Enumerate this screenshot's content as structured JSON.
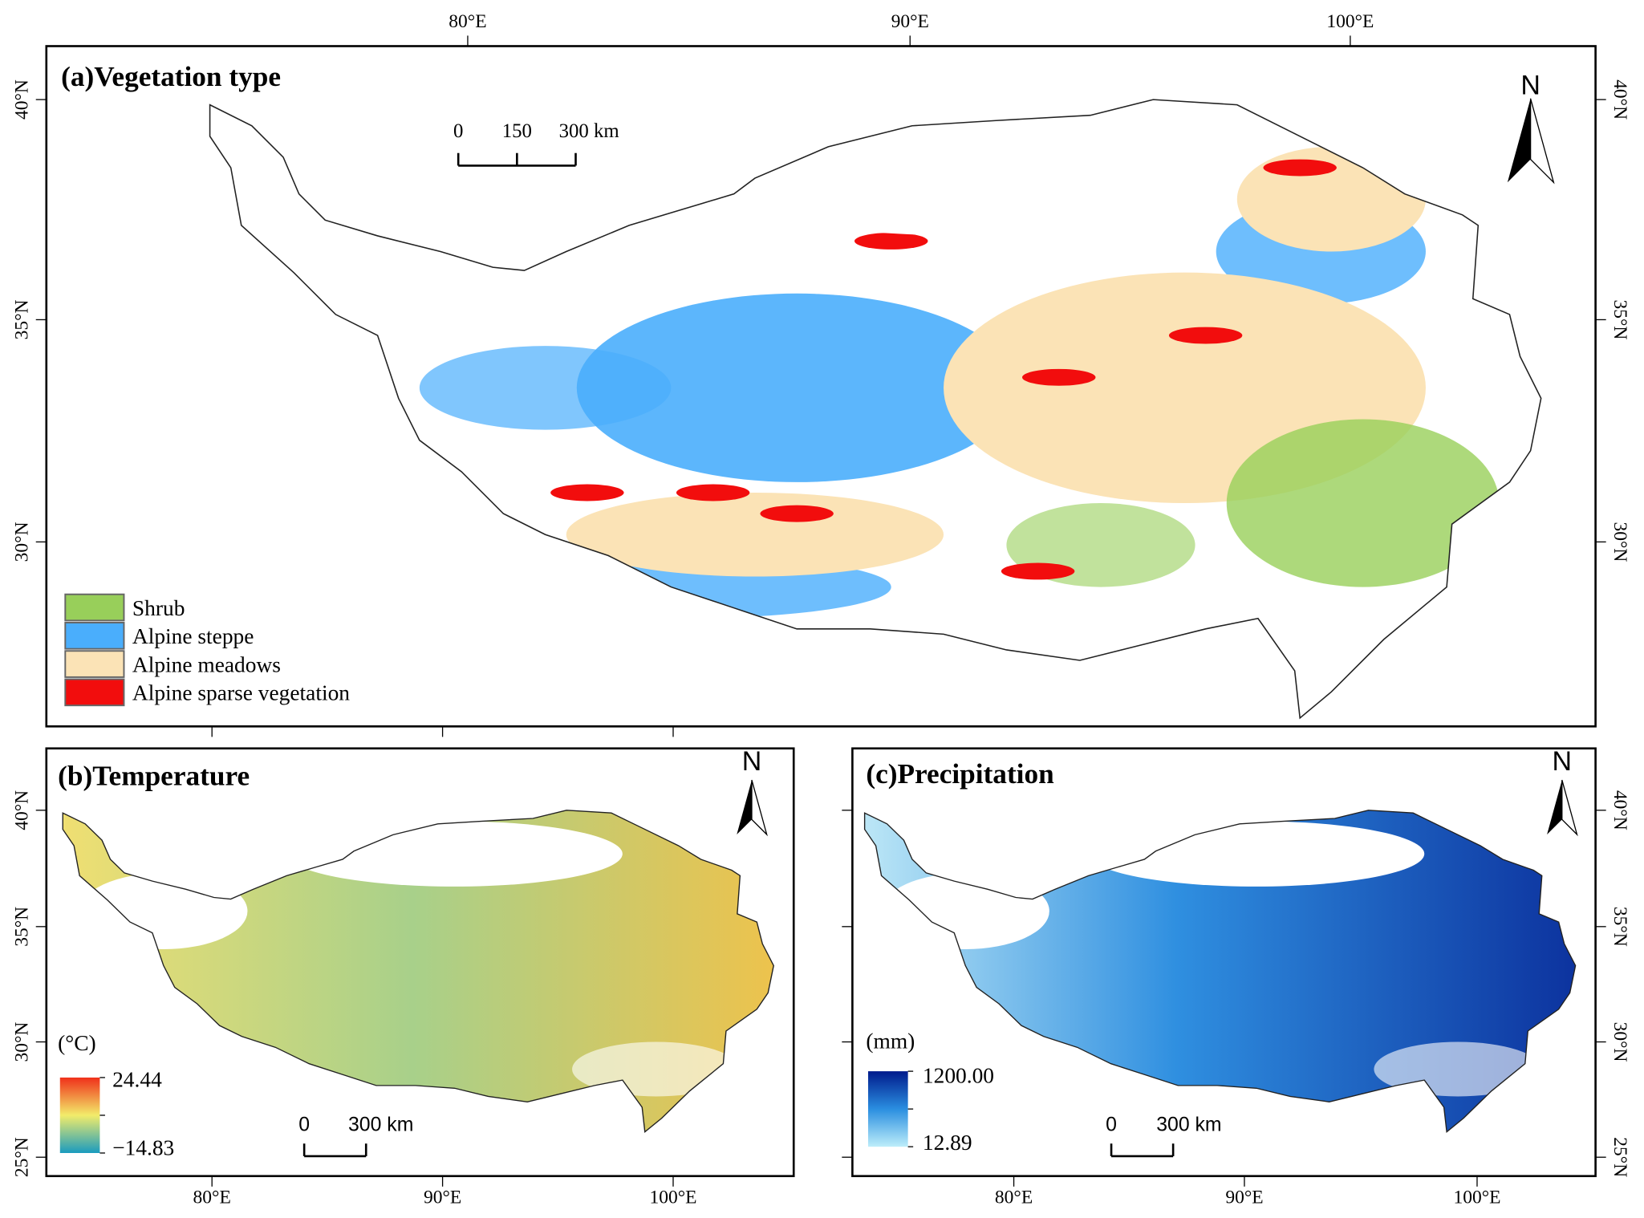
{
  "panels": [
    {
      "title": "(a)Vegetation type",
      "north": "N",
      "top_ticks": [
        "80°E",
        "90°E",
        "100°E"
      ],
      "left_ticks": [
        "40°N",
        "35°N",
        "30°N"
      ],
      "right_ticks": [
        "40°N",
        "35°N",
        "30°N"
      ],
      "scale_labels": [
        "0",
        "150",
        "300 km"
      ],
      "legend": [
        {
          "label": "Shrub",
          "color": "#98cf5a"
        },
        {
          "label": "Alpine steppe",
          "color": "#4aaefc"
        },
        {
          "label": "Alpine meadows",
          "color": "#fbe3b6"
        },
        {
          "label": "Alpine sparse vegetation",
          "color": "#f20d0d"
        }
      ]
    },
    {
      "title": "(b)Temperature",
      "north": "N",
      "bottom_ticks": [
        "80°E",
        "90°E",
        "100°E"
      ],
      "left_ticks": [
        "40°N",
        "35°N",
        "30°N",
        "25°N"
      ],
      "scale_labels": [
        "0",
        "300 km"
      ],
      "unit": "(°C)",
      "max": "24.44",
      "min": "−14.83"
    },
    {
      "title": "(c)Precipitation",
      "north": "N",
      "bottom_ticks": [
        "80°E",
        "90°E",
        "100°E"
      ],
      "right_ticks": [
        "40°N",
        "35°N",
        "30°N",
        "25°N"
      ],
      "scale_labels": [
        "0",
        "300 km"
      ],
      "unit": "(mm)",
      "max": "1200.00",
      "min": "12.89"
    }
  ]
}
